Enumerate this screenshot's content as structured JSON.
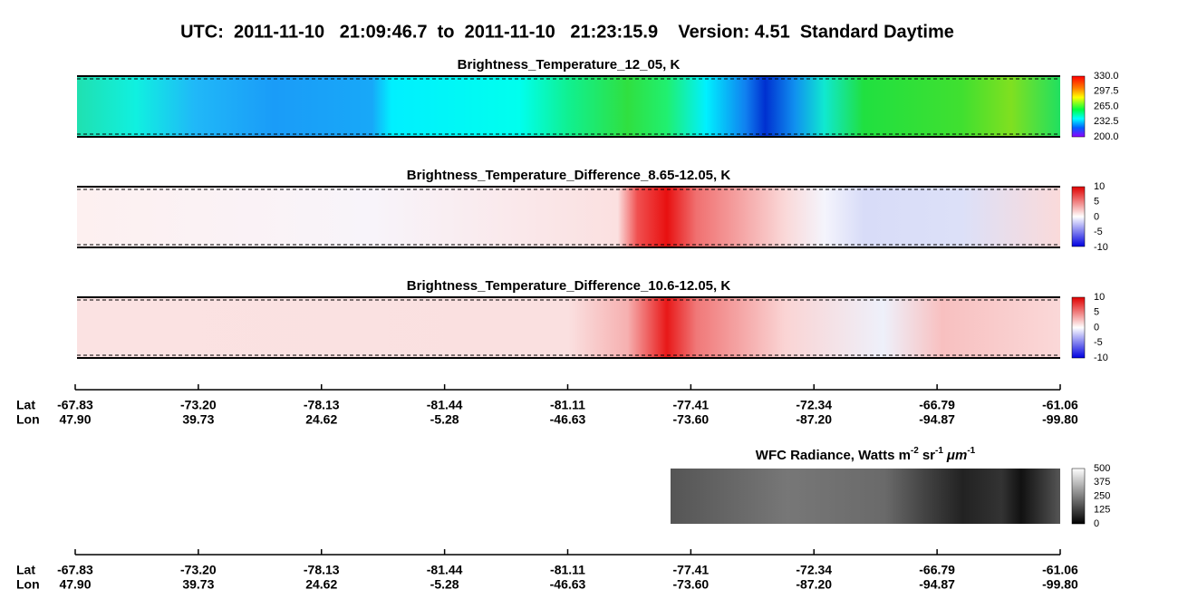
{
  "header": {
    "title": "UTC:  2011-11-10   21:09:46.7  to  2011-11-10   21:23:15.9    Version: 4.51  Standard Daytime"
  },
  "panels": [
    {
      "title": "Brightness_Temperature_12_05, K",
      "colorbar": [
        "330.0",
        "297.5",
        "265.0",
        "232.5",
        "200.0"
      ]
    },
    {
      "title": "Brightness_Temperature_Difference_8.65-12.05, K",
      "colorbar": [
        "10",
        "5",
        "0",
        "-5",
        "-10"
      ]
    },
    {
      "title": "Brightness_Temperature_Difference_10.6-12.05, K",
      "colorbar": [
        "10",
        "5",
        "0",
        "-5",
        "-10"
      ]
    }
  ],
  "axes": [
    {
      "lat_label": "Lat",
      "lon_label": "Lon",
      "lat": [
        "-67.83",
        "-73.20",
        "-78.13",
        "-81.44",
        "-81.11",
        "-77.41",
        "-72.34",
        "-66.79",
        "-61.06"
      ],
      "lon": [
        "47.90",
        "39.73",
        "24.62",
        "-5.28",
        "-46.63",
        "-73.60",
        "-87.20",
        "-94.87",
        "-99.80"
      ]
    },
    {
      "lat_label": "Lat",
      "lon_label": "Lon",
      "lat": [
        "-67.83",
        "-73.20",
        "-78.13",
        "-81.44",
        "-81.11",
        "-77.41",
        "-72.34",
        "-66.79",
        "-61.06"
      ],
      "lon": [
        "47.90",
        "39.73",
        "24.62",
        "-5.28",
        "-46.63",
        "-73.60",
        "-87.20",
        "-94.87",
        "-99.80"
      ]
    }
  ],
  "wfc": {
    "title_parts": [
      "WFC Radiance, Watts m",
      "-2",
      "sr",
      "-1",
      "μm",
      "-1"
    ],
    "colorbar": [
      "500",
      "375",
      "250",
      "125",
      "0"
    ]
  }
}
